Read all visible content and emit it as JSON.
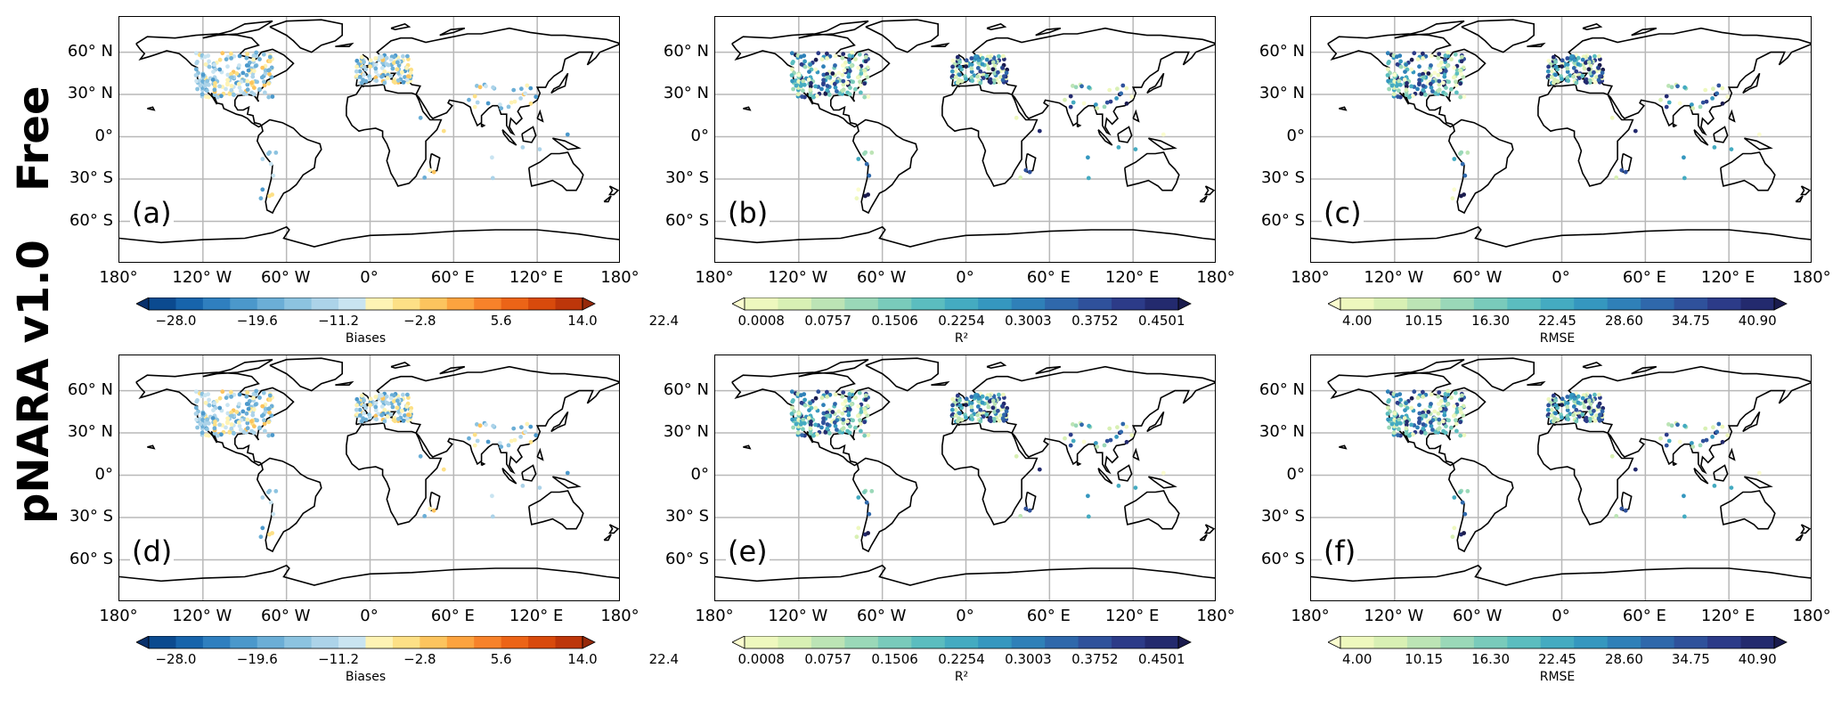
{
  "row_labels": [
    "Free",
    "pNARA v1.0"
  ],
  "lat_labels": [
    "60° N",
    "30° N",
    "0°",
    "30° S",
    "60° S"
  ],
  "lon_labels": [
    "180°",
    "120° W",
    "60° W",
    "0°",
    "60° E",
    "120° E",
    "180°"
  ],
  "panels": [
    {
      "id": "a",
      "label": "(a)",
      "metric": "bias"
    },
    {
      "id": "b",
      "label": "(b)",
      "metric": "r2"
    },
    {
      "id": "c",
      "label": "(c)",
      "metric": "rmse"
    },
    {
      "id": "d",
      "label": "(d)",
      "metric": "bias"
    },
    {
      "id": "e",
      "label": "(e)",
      "metric": "r2"
    },
    {
      "id": "f",
      "label": "(f)",
      "metric": "rmse"
    }
  ],
  "colorbars": {
    "bias": {
      "title": "Biases",
      "ticks": [
        "−28.0",
        "−19.6",
        "−11.2",
        "−2.8",
        "5.6",
        "14.0",
        "22.4"
      ],
      "colors": [
        "#08306b",
        "#0b4a8f",
        "#1764ab",
        "#2f7fbf",
        "#4b98cb",
        "#6baed6",
        "#8cc3e0",
        "#acd3e9",
        "#c9e4f1",
        "#fef3b4",
        "#fde086",
        "#fcc45e",
        "#fca33f",
        "#f7822a",
        "#ec6417",
        "#d84a0c",
        "#bd360a",
        "#96290a"
      ]
    },
    "r2": {
      "title": "R²",
      "ticks": [
        "0.0008",
        "0.0757",
        "0.1506",
        "0.2254",
        "0.3003",
        "0.3752",
        "0.4501"
      ],
      "colors": [
        "#fbfdcf",
        "#eef8be",
        "#d8f0b4",
        "#bce4b5",
        "#9ad8b8",
        "#79cbbb",
        "#5bbdbf",
        "#44abc1",
        "#3597bf",
        "#2f80b8",
        "#2f68ab",
        "#2f519b",
        "#2c3b88",
        "#232a6e",
        "#1a1b4d"
      ]
    },
    "rmse": {
      "title": "RMSE",
      "ticks": [
        "4.00",
        "10.15",
        "16.30",
        "22.45",
        "28.60",
        "34.75",
        "40.90"
      ],
      "colors": [
        "#fbfdcf",
        "#eef8be",
        "#d8f0b4",
        "#bce4b5",
        "#9ad8b8",
        "#79cbbb",
        "#5bbdbf",
        "#44abc1",
        "#3597bf",
        "#2f80b8",
        "#2f68ab",
        "#2f519b",
        "#2c3b88",
        "#232a6e",
        "#1a1b4d"
      ]
    }
  }
}
